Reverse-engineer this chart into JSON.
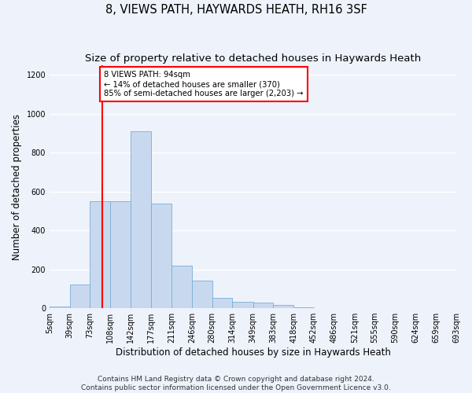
{
  "title": "8, VIEWS PATH, HAYWARDS HEATH, RH16 3SF",
  "subtitle": "Size of property relative to detached houses in Haywards Heath",
  "xlabel": "Distribution of detached houses by size in Haywards Heath",
  "ylabel": "Number of detached properties",
  "footer_line1": "Contains HM Land Registry data © Crown copyright and database right 2024.",
  "footer_line2": "Contains public sector information licensed under the Open Government Licence v3.0.",
  "bar_color": "#c8d9ef",
  "bar_edgecolor": "#7aadd4",
  "vline_x": 94,
  "vline_color": "red",
  "annotation_text": "8 VIEWS PATH: 94sqm\n← 14% of detached houses are smaller (370)\n85% of semi-detached houses are larger (2,203) →",
  "bins": [
    5,
    39,
    73,
    108,
    142,
    177,
    211,
    246,
    280,
    314,
    349,
    383,
    418,
    452,
    486,
    521,
    555,
    590,
    624,
    659,
    693
  ],
  "bar_heights": [
    8,
    120,
    550,
    550,
    910,
    540,
    220,
    140,
    52,
    32,
    30,
    18,
    5,
    0,
    0,
    0,
    0,
    0,
    0,
    0
  ],
  "ylim": [
    0,
    1250
  ],
  "xlim": [
    5,
    693
  ],
  "yticks": [
    0,
    200,
    400,
    600,
    800,
    1000,
    1200
  ],
  "background_color": "#eef2fb",
  "grid_color": "#ffffff",
  "title_fontsize": 10.5,
  "subtitle_fontsize": 9.5,
  "axis_label_fontsize": 8.5,
  "tick_fontsize": 7,
  "footer_fontsize": 6.5
}
